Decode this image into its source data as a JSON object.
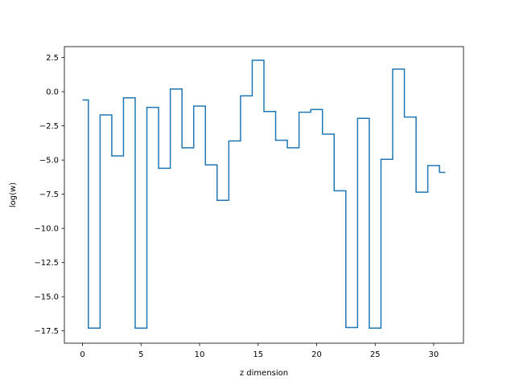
{
  "chart_data": {
    "type": "line",
    "drawstyle": "steps-mid",
    "xlabel": "z dimension",
    "ylabel": "log(w)",
    "xlim": [
      -1.55,
      32.55
    ],
    "ylim": [
      -18.4,
      3.3
    ],
    "xticks": [
      0,
      5,
      10,
      15,
      20,
      25,
      30
    ],
    "xtick_labels": [
      "0",
      "5",
      "10",
      "15",
      "20",
      "25",
      "30"
    ],
    "yticks": [
      2.5,
      0.0,
      -2.5,
      -5.0,
      -7.5,
      -10.0,
      -12.5,
      -15.0,
      -17.5
    ],
    "ytick_labels": [
      "2.5",
      "0.0",
      "−2.5",
      "−5.0",
      "−7.5",
      "−10.0",
      "−12.5",
      "−15.0",
      "−17.5"
    ],
    "grid": false,
    "line_color": "#1f77b4",
    "series": [
      {
        "x": [
          0,
          1,
          2,
          3,
          4,
          5,
          6,
          7,
          8,
          9,
          10,
          11,
          12,
          13,
          14,
          15,
          16,
          17,
          18,
          19,
          20,
          21,
          22,
          23,
          24,
          25,
          26,
          27,
          28,
          29,
          30,
          31
        ],
        "y": [
          -0.6,
          -17.3,
          -1.7,
          -4.7,
          -0.45,
          -17.3,
          -1.15,
          -5.6,
          0.2,
          -4.1,
          -1.05,
          -5.35,
          -7.95,
          -3.6,
          -0.3,
          2.3,
          -1.45,
          -3.55,
          -4.1,
          -1.5,
          -1.3,
          -3.1,
          -7.25,
          -17.25,
          -1.95,
          -17.3,
          -4.95,
          1.65,
          -1.85,
          -7.35,
          -5.4,
          -5.9
        ]
      }
    ]
  }
}
